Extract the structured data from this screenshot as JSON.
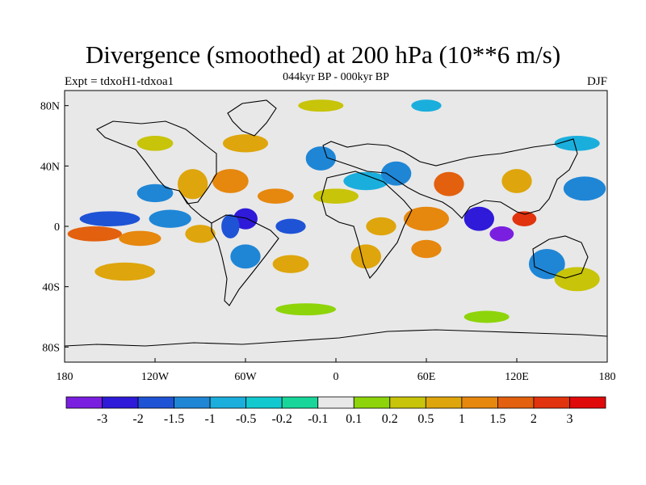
{
  "title": "Divergence (smoothed) at 200 hPa (10**6 m/s)",
  "experiment_label": "Expt = tdxoH1-tdxoa1",
  "period_label": "044kyr BP - 000kyr BP",
  "season_label": "DJF",
  "map": {
    "lon_range": [
      -180,
      180
    ],
    "lat_range": [
      -90,
      90
    ],
    "x_ticks": [
      {
        "lon": -180,
        "label": "180"
      },
      {
        "lon": -120,
        "label": "120W"
      },
      {
        "lon": -60,
        "label": "60W"
      },
      {
        "lon": 0,
        "label": "0"
      },
      {
        "lon": 60,
        "label": "60E"
      },
      {
        "lon": 120,
        "label": "120E"
      },
      {
        "lon": 180,
        "label": "180"
      }
    ],
    "y_ticks": [
      {
        "lat": 80,
        "label": "80N"
      },
      {
        "lat": 40,
        "label": "40N"
      },
      {
        "lat": 0,
        "label": "0"
      },
      {
        "lat": -40,
        "label": "40S"
      },
      {
        "lat": -80,
        "label": "80S"
      }
    ]
  },
  "colorbar": {
    "levels": [
      "-3",
      "-2",
      "-1.5",
      "-1",
      "-0.5",
      "-0.2",
      "-0.1",
      "0.1",
      "0.2",
      "0.5",
      "1",
      "1.5",
      "2",
      "3"
    ],
    "colors": [
      "#7a1fe0",
      "#2e1ad8",
      "#1f53d6",
      "#1f86d6",
      "#1aaedd",
      "#12c9d0",
      "#18d69a",
      "#e8e8e8",
      "#8ed40a",
      "#c7c40a",
      "#dea50c",
      "#e6870e",
      "#e2600e",
      "#e1330e",
      "#e10a0a"
    ]
  },
  "chart_data": {
    "type": "heatmap",
    "title": "Divergence (smoothed) at 200 hPa (10**6 m/s)",
    "subtitle": "044kyr BP - 000kyr BP",
    "xlabel": "",
    "ylabel": "",
    "xlim": [
      -180,
      180
    ],
    "ylim": [
      -90,
      90
    ],
    "anomalies": [
      {
        "lon": -160,
        "lat": -5,
        "value": 2.0,
        "rlon": 18,
        "rlat": 5
      },
      {
        "lon": -130,
        "lat": -8,
        "value": 1.5,
        "rlon": 14,
        "rlat": 5
      },
      {
        "lon": -150,
        "lat": 5,
        "value": -1.5,
        "rlon": 20,
        "rlat": 5
      },
      {
        "lon": -110,
        "lat": 5,
        "value": -1.0,
        "rlon": 14,
        "rlat": 6
      },
      {
        "lon": -95,
        "lat": 28,
        "value": 1.0,
        "rlon": 10,
        "rlat": 10
      },
      {
        "lon": -70,
        "lat": 30,
        "value": 1.5,
        "rlon": 12,
        "rlat": 8
      },
      {
        "lon": -40,
        "lat": 20,
        "value": 1.5,
        "rlon": 12,
        "rlat": 5
      },
      {
        "lon": -60,
        "lat": 5,
        "value": -2.0,
        "rlon": 8,
        "rlat": 7
      },
      {
        "lon": -70,
        "lat": 0,
        "value": -1.5,
        "rlon": 6,
        "rlat": 8
      },
      {
        "lon": -30,
        "lat": 0,
        "value": -1.5,
        "rlon": 10,
        "rlat": 5
      },
      {
        "lon": -120,
        "lat": 22,
        "value": -1.0,
        "rlon": 12,
        "rlat": 6
      },
      {
        "lon": -90,
        "lat": -5,
        "value": 1.0,
        "rlon": 10,
        "rlat": 6
      },
      {
        "lon": -60,
        "lat": -20,
        "value": -1.0,
        "rlon": 10,
        "rlat": 8
      },
      {
        "lon": -30,
        "lat": -25,
        "value": 1.0,
        "rlon": 12,
        "rlat": 6
      },
      {
        "lon": -140,
        "lat": -30,
        "value": 1.0,
        "rlon": 20,
        "rlat": 6
      },
      {
        "lon": -60,
        "lat": 55,
        "value": 1.0,
        "rlon": 15,
        "rlat": 6
      },
      {
        "lon": -10,
        "lat": 45,
        "value": -1.0,
        "rlon": 10,
        "rlat": 8
      },
      {
        "lon": 20,
        "lat": 30,
        "value": -0.5,
        "rlon": 15,
        "rlat": 6
      },
      {
        "lon": 40,
        "lat": 35,
        "value": -1.0,
        "rlon": 10,
        "rlat": 8
      },
      {
        "lon": 60,
        "lat": 5,
        "value": 1.5,
        "rlon": 15,
        "rlat": 8
      },
      {
        "lon": 60,
        "lat": -15,
        "value": 1.5,
        "rlon": 10,
        "rlat": 6
      },
      {
        "lon": 75,
        "lat": 28,
        "value": 2.0,
        "rlon": 10,
        "rlat": 8
      },
      {
        "lon": 95,
        "lat": 5,
        "value": -2.0,
        "rlon": 10,
        "rlat": 8
      },
      {
        "lon": 110,
        "lat": -5,
        "value": -3.0,
        "rlon": 8,
        "rlat": 5
      },
      {
        "lon": 125,
        "lat": 5,
        "value": 3.0,
        "rlon": 8,
        "rlat": 5
      },
      {
        "lon": 120,
        "lat": 30,
        "value": 1.0,
        "rlon": 10,
        "rlat": 8
      },
      {
        "lon": 140,
        "lat": -25,
        "value": -1.0,
        "rlon": 12,
        "rlat": 10
      },
      {
        "lon": 165,
        "lat": 25,
        "value": -1.0,
        "rlon": 14,
        "rlat": 8
      },
      {
        "lon": 160,
        "lat": -35,
        "value": 0.5,
        "rlon": 15,
        "rlat": 8
      },
      {
        "lon": 20,
        "lat": -20,
        "value": 1.0,
        "rlon": 10,
        "rlat": 8
      },
      {
        "lon": 30,
        "lat": 0,
        "value": 1.0,
        "rlon": 10,
        "rlat": 6
      },
      {
        "lon": 0,
        "lat": 20,
        "value": 0.5,
        "rlon": 15,
        "rlat": 5
      },
      {
        "lon": -120,
        "lat": 55,
        "value": 0.5,
        "rlon": 12,
        "rlat": 5
      },
      {
        "lon": 160,
        "lat": 55,
        "value": -0.5,
        "rlon": 15,
        "rlat": 5
      },
      {
        "lon": -20,
        "lat": -55,
        "value": 0.2,
        "rlon": 20,
        "rlat": 4
      },
      {
        "lon": 100,
        "lat": -60,
        "value": 0.2,
        "rlon": 15,
        "rlat": 4
      },
      {
        "lon": -10,
        "lat": 80,
        "value": 0.5,
        "rlon": 15,
        "rlat": 4
      },
      {
        "lon": 60,
        "lat": 80,
        "value": -0.5,
        "rlon": 10,
        "rlat": 4
      }
    ]
  }
}
